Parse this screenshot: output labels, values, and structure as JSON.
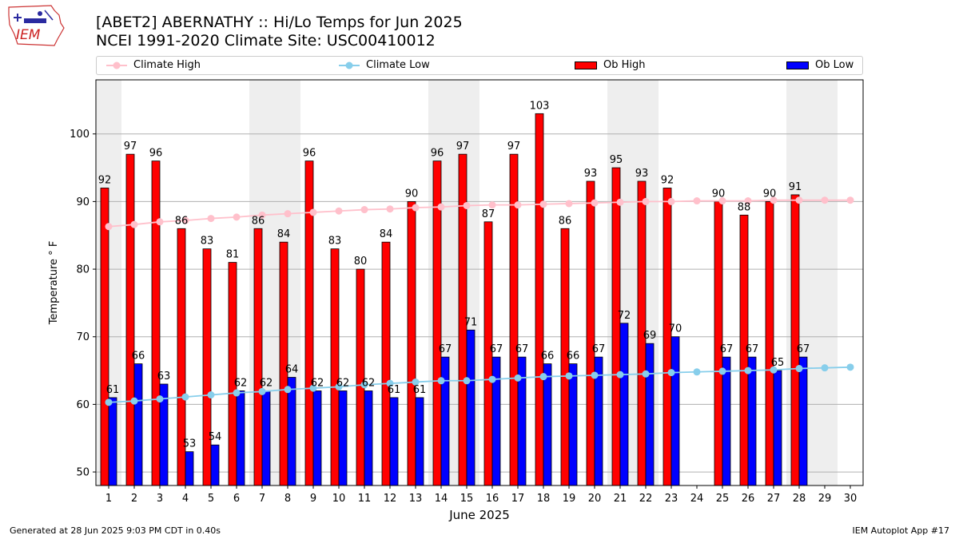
{
  "title_line1": "[ABET2] ABERNATHY :: Hi/Lo Temps for Jun 2025",
  "title_line2": "NCEI 1991-2020 Climate Site: USC00410012",
  "logo_text": "IEM",
  "footer_left": "Generated at 28 Jun 2025 9:03 PM CDT in 0.40s",
  "footer_right": "IEM Autoplot App #17",
  "colors": {
    "ob_high": "#ff0000",
    "ob_low": "#0000ff",
    "climate_high": "#ffc0cb",
    "climate_low": "#87ceeb",
    "weekend_shade": "#eeeeee",
    "grid": "#b0b0b0"
  },
  "legend": {
    "climate_high": "Climate High",
    "climate_low": "Climate Low",
    "ob_high": "Ob High",
    "ob_low": "Ob Low"
  },
  "chart_data": {
    "type": "bar",
    "xlabel": "June 2025",
    "ylabel": "Temperature ° F",
    "ylim": [
      48,
      108
    ],
    "yticks": [
      50,
      60,
      70,
      80,
      90,
      100
    ],
    "grid": true,
    "legend_position": "top",
    "x": [
      1,
      2,
      3,
      4,
      5,
      6,
      7,
      8,
      9,
      10,
      11,
      12,
      13,
      14,
      15,
      16,
      17,
      18,
      19,
      20,
      21,
      22,
      23,
      24,
      25,
      26,
      27,
      28,
      29,
      30
    ],
    "shaded_days": [
      1,
      7,
      8,
      14,
      15,
      21,
      22,
      28,
      29
    ],
    "series": [
      {
        "name": "Ob High",
        "kind": "bar",
        "values": [
          92,
          97,
          96,
          86,
          83,
          81,
          86,
          84,
          96,
          83,
          80,
          84,
          90,
          96,
          97,
          87,
          97,
          103,
          86,
          93,
          95,
          93,
          92,
          null,
          90,
          88,
          90,
          91,
          null,
          null
        ]
      },
      {
        "name": "Ob Low",
        "kind": "bar",
        "values": [
          61,
          66,
          63,
          53,
          54,
          62,
          62,
          64,
          62,
          62,
          62,
          61,
          61,
          67,
          71,
          67,
          67,
          66,
          66,
          67,
          72,
          69,
          70,
          null,
          67,
          67,
          65,
          67,
          null,
          null
        ]
      },
      {
        "name": "Climate High",
        "kind": "line",
        "values": [
          86.3,
          86.6,
          87.0,
          87.2,
          87.5,
          87.7,
          88.0,
          88.2,
          88.4,
          88.6,
          88.8,
          88.9,
          89.1,
          89.2,
          89.4,
          89.5,
          89.5,
          89.6,
          89.7,
          89.8,
          89.9,
          90.0,
          90.0,
          90.1,
          90.1,
          90.1,
          90.2,
          90.2,
          90.2,
          90.2
        ]
      },
      {
        "name": "Climate Low",
        "kind": "line",
        "values": [
          60.3,
          60.5,
          60.8,
          61.1,
          61.4,
          61.7,
          61.9,
          62.2,
          62.4,
          62.6,
          62.9,
          63.1,
          63.3,
          63.5,
          63.5,
          63.7,
          63.9,
          64.1,
          64.2,
          64.3,
          64.4,
          64.5,
          64.7,
          64.8,
          64.9,
          65.0,
          65.1,
          65.3,
          65.4,
          65.5
        ]
      }
    ]
  }
}
